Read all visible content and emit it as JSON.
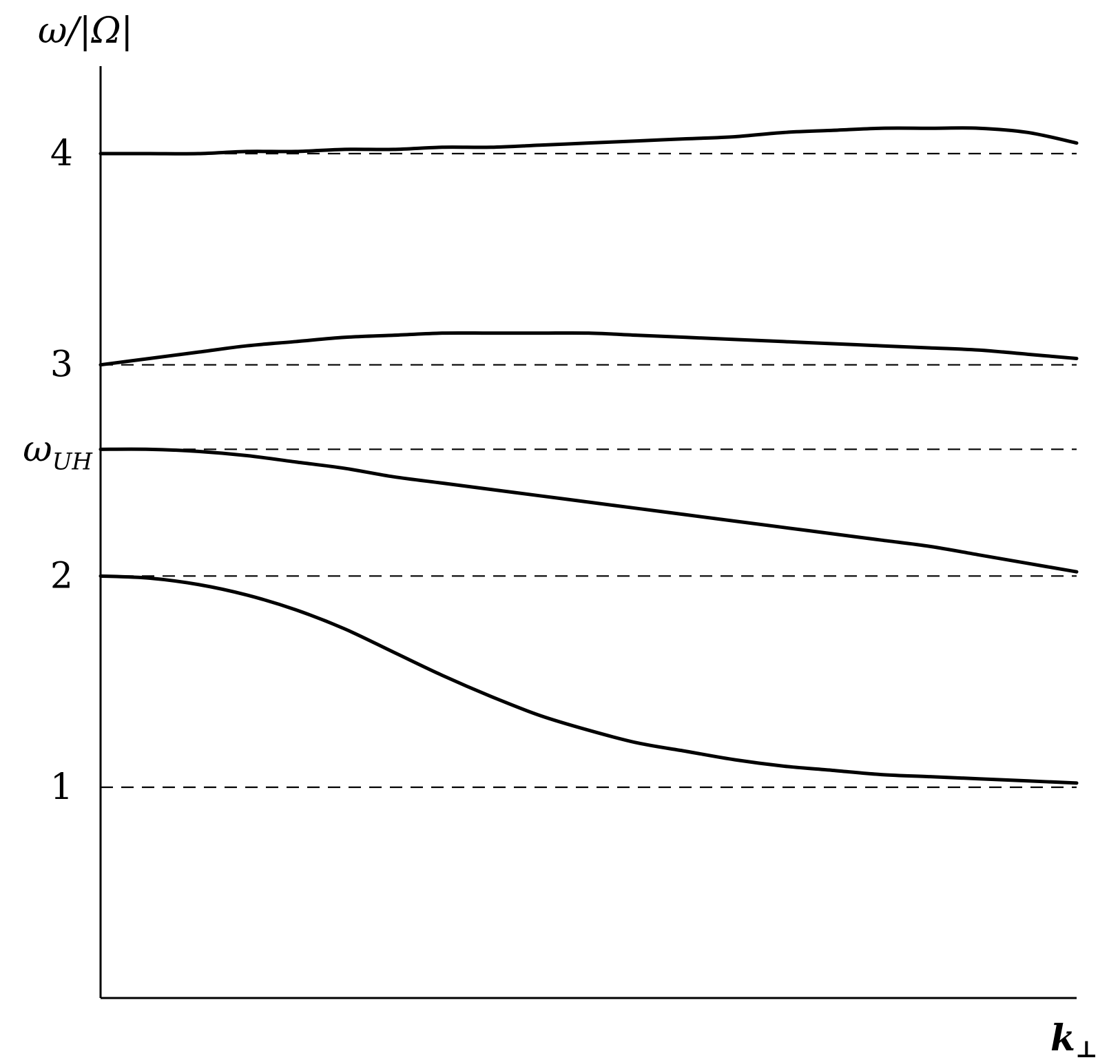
{
  "chart_data": {
    "type": "line",
    "title": "",
    "ylabel": {
      "main": "ω/|Ω|"
    },
    "xlabel": {
      "main": "k",
      "sub": "⊥"
    },
    "xlim": [
      0,
      1
    ],
    "ylim": [
      0,
      4.4
    ],
    "grid": false,
    "yticks": [
      {
        "value": 1,
        "label": "1"
      },
      {
        "value": 2,
        "label": "2"
      },
      {
        "value": 2.6,
        "label": "ω",
        "sub": "UH"
      },
      {
        "value": 3,
        "label": "3"
      },
      {
        "value": 4,
        "label": "4"
      }
    ],
    "reference_lines": [
      1,
      2,
      2.6,
      3,
      4
    ],
    "series": [
      {
        "x": [
          0,
          0.05,
          0.1,
          0.15,
          0.2,
          0.25,
          0.3,
          0.35,
          0.4,
          0.45,
          0.5,
          0.55,
          0.6,
          0.65,
          0.7,
          0.75,
          0.8,
          0.85,
          0.9,
          0.95,
          1
        ],
        "y": [
          2.0,
          1.99,
          1.96,
          1.91,
          1.84,
          1.75,
          1.64,
          1.53,
          1.43,
          1.34,
          1.27,
          1.21,
          1.17,
          1.13,
          1.1,
          1.08,
          1.06,
          1.05,
          1.04,
          1.03,
          1.02
        ]
      },
      {
        "x": [
          0,
          0.05,
          0.1,
          0.15,
          0.2,
          0.25,
          0.3,
          0.35,
          0.4,
          0.45,
          0.5,
          0.55,
          0.6,
          0.65,
          0.7,
          0.75,
          0.8,
          0.85,
          0.9,
          0.95,
          1
        ],
        "y": [
          2.6,
          2.6,
          2.59,
          2.57,
          2.54,
          2.51,
          2.47,
          2.44,
          2.41,
          2.38,
          2.35,
          2.32,
          2.29,
          2.26,
          2.23,
          2.2,
          2.17,
          2.14,
          2.1,
          2.06,
          2.02
        ]
      },
      {
        "x": [
          0,
          0.05,
          0.1,
          0.15,
          0.2,
          0.25,
          0.3,
          0.35,
          0.4,
          0.45,
          0.5,
          0.55,
          0.6,
          0.65,
          0.7,
          0.75,
          0.8,
          0.85,
          0.9,
          0.95,
          1
        ],
        "y": [
          3.0,
          3.03,
          3.06,
          3.09,
          3.11,
          3.13,
          3.14,
          3.15,
          3.15,
          3.15,
          3.15,
          3.14,
          3.13,
          3.12,
          3.11,
          3.1,
          3.09,
          3.08,
          3.07,
          3.05,
          3.03
        ]
      },
      {
        "x": [
          0,
          0.05,
          0.1,
          0.15,
          0.2,
          0.25,
          0.3,
          0.35,
          0.4,
          0.45,
          0.5,
          0.55,
          0.6,
          0.65,
          0.7,
          0.75,
          0.8,
          0.85,
          0.9,
          0.95,
          1
        ],
        "y": [
          4.0,
          4.0,
          4.0,
          4.01,
          4.01,
          4.02,
          4.02,
          4.03,
          4.03,
          4.04,
          4.05,
          4.06,
          4.07,
          4.08,
          4.1,
          4.11,
          4.12,
          4.12,
          4.12,
          4.1,
          4.05
        ]
      }
    ]
  }
}
